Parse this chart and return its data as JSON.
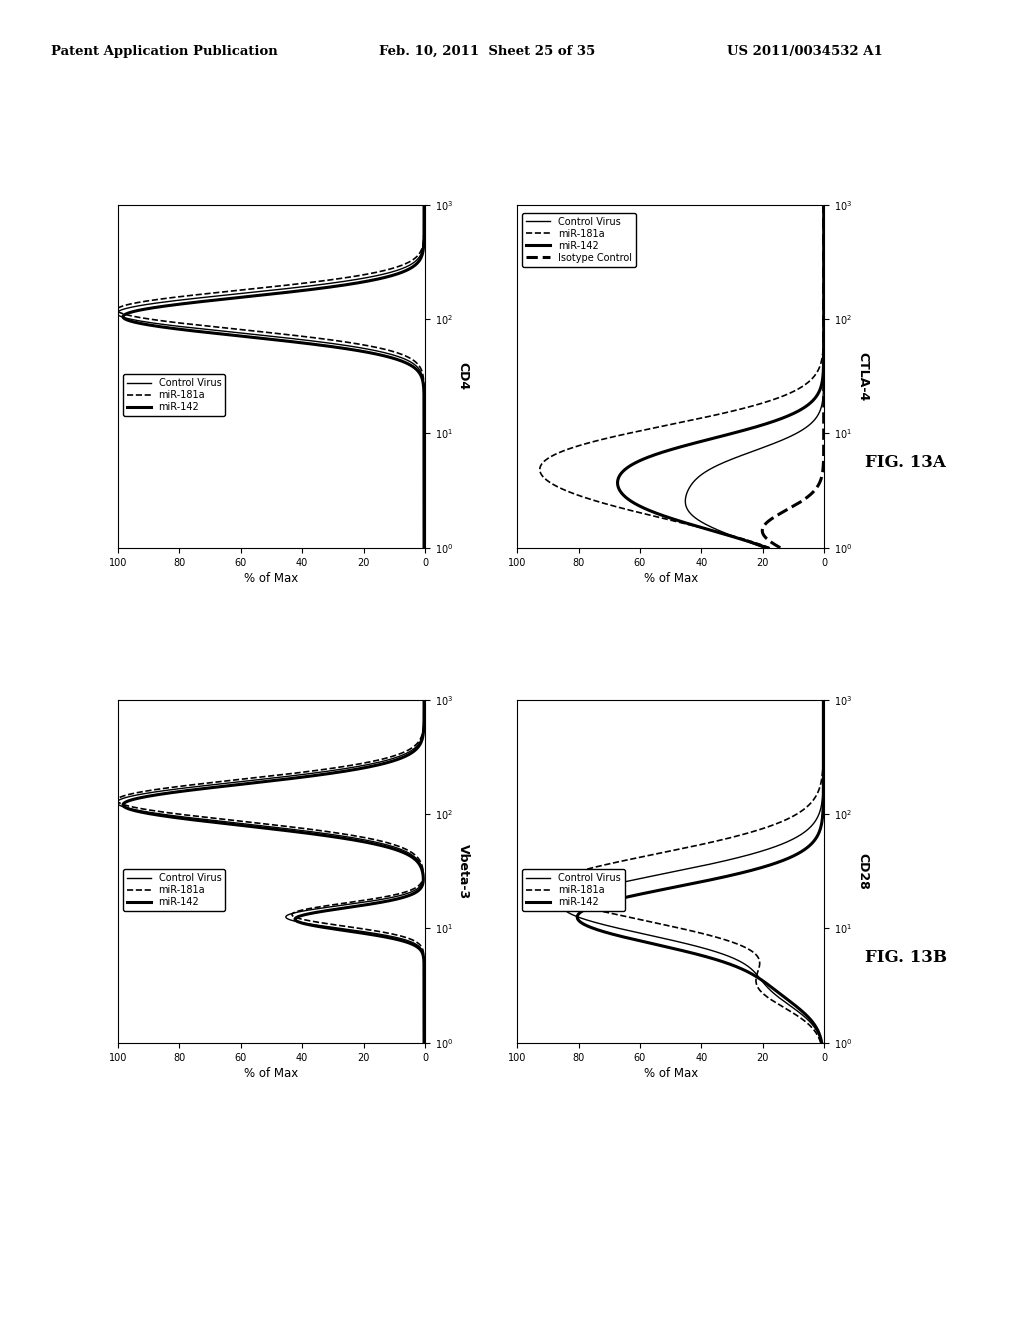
{
  "header_left": "Patent Application Publication",
  "header_mid": "Feb. 10, 2011  Sheet 25 of 35",
  "header_right": "US 2011/0034532 A1",
  "fig_label_A": "FIG. 13A",
  "fig_label_B": "FIG. 13B",
  "plots": {
    "top_left": {
      "label": "CD4",
      "legend": [
        "Control Virus",
        "miR-181a",
        "miR-142"
      ],
      "n_curves": 3
    },
    "top_right": {
      "label": "CTLA-4",
      "legend": [
        "Control Virus",
        "miR-181a",
        "miR-142",
        "Isotype Control"
      ],
      "n_curves": 4
    },
    "bot_left": {
      "label": "Vbeta-3",
      "legend": [
        "Control Virus",
        "miR-181a",
        "miR-142"
      ],
      "n_curves": 3
    },
    "bot_right": {
      "label": "CD28",
      "legend": [
        "Control Virus",
        "miR-181a",
        "miR-142"
      ],
      "n_curves": 3
    }
  },
  "y_label": "% of Max",
  "background_color": "#ffffff"
}
